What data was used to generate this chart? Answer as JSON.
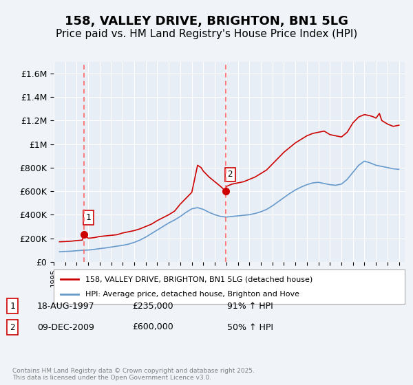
{
  "title": "158, VALLEY DRIVE, BRIGHTON, BN1 5LG",
  "subtitle": "Price paid vs. HM Land Registry's House Price Index (HPI)",
  "title_fontsize": 13,
  "subtitle_fontsize": 11,
  "background_color": "#f0f4f8",
  "plot_bg_color": "#e8eef5",
  "ylabel_ticks": [
    "£0",
    "£200K",
    "£400K",
    "£600K",
    "£800K",
    "£1M",
    "£1.2M",
    "£1.4M",
    "£1.6M"
  ],
  "ytick_values": [
    0,
    200000,
    400000,
    600000,
    800000,
    1000000,
    1200000,
    1400000,
    1600000
  ],
  "ylim": [
    0,
    1700000
  ],
  "xlim_start": 1995,
  "xlim_end": 2025.5,
  "xticks": [
    1995,
    1996,
    1997,
    1998,
    1999,
    2000,
    2001,
    2002,
    2003,
    2004,
    2005,
    2006,
    2007,
    2008,
    2009,
    2010,
    2011,
    2012,
    2013,
    2014,
    2015,
    2016,
    2017,
    2018,
    2019,
    2020,
    2021,
    2022,
    2023,
    2024,
    2025
  ],
  "red_line_color": "#cc0000",
  "blue_line_color": "#6699cc",
  "dashed_line_color": "#ff6666",
  "marker_color": "#cc0000",
  "transaction1_x": 1997.62,
  "transaction1_y": 235000,
  "transaction1_label": "1",
  "transaction2_x": 2009.94,
  "transaction2_y": 600000,
  "transaction2_label": "2",
  "legend1_label": "158, VALLEY DRIVE, BRIGHTON, BN1 5LG (detached house)",
  "legend2_label": "HPI: Average price, detached house, Brighton and Hove",
  "table_entries": [
    {
      "num": "1",
      "date": "18-AUG-1997",
      "price": "£235,000",
      "hpi": "91% ↑ HPI"
    },
    {
      "num": "2",
      "date": "09-DEC-2009",
      "price": "£600,000",
      "hpi": "50% ↑ HPI"
    }
  ],
  "footer": "Contains HM Land Registry data © Crown copyright and database right 2025.\nThis data is licensed under the Open Government Licence v3.0.",
  "red_x": [
    1995.5,
    1996.0,
    1996.5,
    1997.0,
    1997.5,
    1997.62,
    1998.0,
    1998.5,
    1999.0,
    1999.5,
    2000.0,
    2000.5,
    2001.0,
    2001.5,
    2002.0,
    2002.5,
    2003.0,
    2003.5,
    2004.0,
    2004.5,
    2005.0,
    2005.5,
    2006.0,
    2006.5,
    2007.0,
    2007.5,
    2007.8,
    2008.0,
    2008.5,
    2009.0,
    2009.5,
    2009.94,
    2010.0,
    2010.5,
    2011.0,
    2011.5,
    2012.0,
    2012.5,
    2013.0,
    2013.5,
    2014.0,
    2014.5,
    2015.0,
    2015.5,
    2016.0,
    2016.5,
    2017.0,
    2017.5,
    2018.0,
    2018.5,
    2019.0,
    2019.5,
    2020.0,
    2020.5,
    2021.0,
    2021.5,
    2022.0,
    2022.5,
    2022.8,
    2023.0,
    2023.3,
    2023.5,
    2024.0,
    2024.5,
    2025.0
  ],
  "red_y": [
    170000,
    172000,
    175000,
    180000,
    185000,
    235000,
    200000,
    205000,
    215000,
    220000,
    225000,
    230000,
    245000,
    255000,
    265000,
    280000,
    300000,
    320000,
    350000,
    375000,
    400000,
    430000,
    490000,
    540000,
    590000,
    820000,
    800000,
    770000,
    720000,
    680000,
    640000,
    600000,
    640000,
    660000,
    670000,
    680000,
    700000,
    720000,
    750000,
    780000,
    830000,
    880000,
    930000,
    970000,
    1010000,
    1040000,
    1070000,
    1090000,
    1100000,
    1110000,
    1080000,
    1070000,
    1060000,
    1100000,
    1180000,
    1230000,
    1250000,
    1240000,
    1230000,
    1220000,
    1260000,
    1200000,
    1170000,
    1150000,
    1160000
  ],
  "blue_x": [
    1995.5,
    1996.0,
    1996.5,
    1997.0,
    1997.5,
    1998.0,
    1998.5,
    1999.0,
    1999.5,
    2000.0,
    2000.5,
    2001.0,
    2001.5,
    2002.0,
    2002.5,
    2003.0,
    2003.5,
    2004.0,
    2004.5,
    2005.0,
    2005.5,
    2006.0,
    2006.5,
    2007.0,
    2007.5,
    2008.0,
    2008.5,
    2009.0,
    2009.5,
    2010.0,
    2010.5,
    2011.0,
    2011.5,
    2012.0,
    2012.5,
    2013.0,
    2013.5,
    2014.0,
    2014.5,
    2015.0,
    2015.5,
    2016.0,
    2016.5,
    2017.0,
    2017.5,
    2018.0,
    2018.5,
    2019.0,
    2019.5,
    2020.0,
    2020.5,
    2021.0,
    2021.5,
    2022.0,
    2022.5,
    2023.0,
    2023.5,
    2024.0,
    2024.5,
    2025.0
  ],
  "blue_y": [
    85000,
    88000,
    90000,
    94000,
    98000,
    100000,
    105000,
    112000,
    118000,
    125000,
    133000,
    140000,
    150000,
    165000,
    185000,
    210000,
    240000,
    270000,
    300000,
    330000,
    355000,
    385000,
    420000,
    450000,
    460000,
    445000,
    420000,
    400000,
    385000,
    380000,
    385000,
    390000,
    395000,
    400000,
    410000,
    425000,
    445000,
    475000,
    510000,
    545000,
    580000,
    610000,
    635000,
    655000,
    670000,
    675000,
    665000,
    655000,
    650000,
    660000,
    700000,
    760000,
    820000,
    855000,
    840000,
    820000,
    810000,
    800000,
    790000,
    785000
  ]
}
